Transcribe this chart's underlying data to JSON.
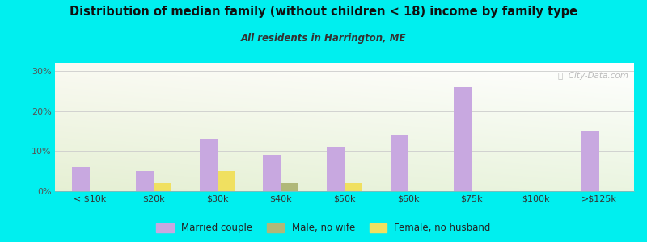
{
  "title": "Distribution of median family (without children < 18) income by family type",
  "subtitle": "All residents in Harrington, ME",
  "categories": [
    "< $10k",
    "$20k",
    "$30k",
    "$40k",
    "$50k",
    "$60k",
    "$75k",
    "$100k",
    ">$125k"
  ],
  "married_couple": [
    6,
    5,
    13,
    9,
    11,
    14,
    26,
    0,
    15
  ],
  "male_no_wife": [
    0,
    0,
    0,
    2,
    0,
    0,
    0,
    0,
    0
  ],
  "female_no_husband": [
    0,
    2,
    5,
    0,
    2,
    0,
    0,
    0,
    0
  ],
  "color_married": "#c8a8e0",
  "color_male": "#b0b878",
  "color_female": "#f0e060",
  "background_outer": "#00efef",
  "ylim": [
    0,
    32
  ],
  "yticks": [
    0,
    10,
    20,
    30
  ],
  "ytick_labels": [
    "0%",
    "10%",
    "20%",
    "30%"
  ],
  "watermark": "City-Data.com",
  "bar_width": 0.28
}
